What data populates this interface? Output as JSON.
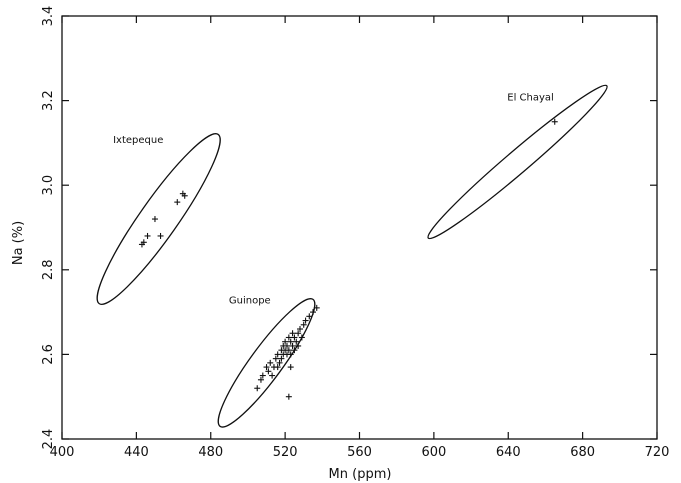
{
  "chart_data": {
    "type": "scatter",
    "title": "",
    "xlabel": "Mn (ppm)",
    "ylabel": "Na (%)",
    "xlim": [
      400,
      720
    ],
    "ylim": [
      2.4,
      3.4
    ],
    "xticks": [
      400,
      440,
      480,
      520,
      560,
      600,
      640,
      680,
      720
    ],
    "yticks": [
      2.4,
      2.6,
      2.8,
      3.0,
      3.2,
      3.4
    ],
    "xtick_labels": [
      "400",
      "440",
      "480",
      "520",
      "560",
      "600",
      "640",
      "680",
      "720"
    ],
    "ytick_labels": [
      "2.4",
      "2.6",
      "2.8",
      "3.0",
      "3.2",
      "3.4"
    ],
    "grid": false,
    "legend": "none",
    "groups": [
      {
        "label": "Ixtepeque",
        "ellipse": {
          "center": [
            452,
            2.92
          ],
          "semi_major": [
            32,
            0.2
          ],
          "semi_minor": [
            -6,
            0.04
          ]
        },
        "label_at": [
          441,
          3.1
        ],
        "points": [
          [
            443,
            2.86
          ],
          [
            444,
            2.865
          ],
          [
            446,
            2.88
          ],
          [
            450,
            2.92
          ],
          [
            453,
            2.88
          ],
          [
            462,
            2.96
          ],
          [
            465,
            2.98
          ],
          [
            466,
            2.975
          ]
        ]
      },
      {
        "label": "Guinope",
        "ellipse": {
          "center": [
            510,
            2.58
          ],
          "semi_major": [
            25,
            0.15
          ],
          "semi_minor": [
            -4,
            0.04
          ]
        },
        "label_at": [
          501,
          2.72
        ],
        "points": [
          [
            505,
            2.52
          ],
          [
            507,
            2.54
          ],
          [
            508,
            2.55
          ],
          [
            510,
            2.57
          ],
          [
            511,
            2.56
          ],
          [
            512,
            2.58
          ],
          [
            513,
            2.55
          ],
          [
            514,
            2.57
          ],
          [
            515,
            2.59
          ],
          [
            516,
            2.6
          ],
          [
            516,
            2.57
          ],
          [
            517,
            2.58
          ],
          [
            518,
            2.61
          ],
          [
            518,
            2.59
          ],
          [
            519,
            2.6
          ],
          [
            519,
            2.62
          ],
          [
            520,
            2.61
          ],
          [
            520,
            2.63
          ],
          [
            521,
            2.6
          ],
          [
            521,
            2.62
          ],
          [
            522,
            2.64
          ],
          [
            522,
            2.61
          ],
          [
            523,
            2.63
          ],
          [
            523,
            2.6
          ],
          [
            524,
            2.65
          ],
          [
            524,
            2.62
          ],
          [
            525,
            2.64
          ],
          [
            525,
            2.61
          ],
          [
            526,
            2.63
          ],
          [
            527,
            2.65
          ],
          [
            527,
            2.62
          ],
          [
            528,
            2.66
          ],
          [
            529,
            2.64
          ],
          [
            530,
            2.67
          ],
          [
            531,
            2.68
          ],
          [
            533,
            2.69
          ],
          [
            535,
            2.7
          ],
          [
            537,
            2.71
          ],
          [
            523,
            2.57
          ],
          [
            522,
            2.5
          ]
        ]
      },
      {
        "label": "El Chayal",
        "ellipse": {
          "center": [
            645,
            3.055
          ],
          "semi_major": [
            48,
            0.18
          ],
          "semi_minor": [
            -4,
            0.02
          ]
        },
        "label_at": [
          652,
          3.2
        ],
        "points": [
          [
            665,
            3.15
          ]
        ]
      }
    ]
  }
}
